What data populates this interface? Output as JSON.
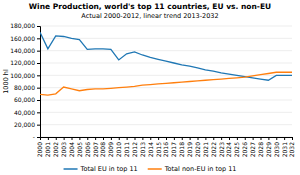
{
  "chart_data": {
    "type": "line",
    "title": "Wine Production, world's top 11 countries, EU vs. non-EU",
    "subtitle": "Actual 2000-2012, linear trend 2013-2032",
    "y_label": "1000 hl",
    "x": [
      2000,
      2001,
      2002,
      2003,
      2004,
      2005,
      2006,
      2007,
      2008,
      2009,
      2010,
      2011,
      2012,
      2013,
      2014,
      2015,
      2016,
      2017,
      2018,
      2019,
      2020,
      2021,
      2022,
      2023,
      2024,
      2025,
      2026,
      2027,
      2028,
      2029,
      2030,
      2031,
      2032
    ],
    "series": [
      {
        "name": "Total EU in top 11",
        "values": [
          170000,
          143000,
          164000,
          163000,
          160000,
          158000,
          142000,
          143000,
          143000,
          142000,
          125000,
          135000,
          138000,
          133000,
          129000,
          126000,
          123000,
          120000,
          117000,
          115000,
          112000,
          109000,
          107000,
          104000,
          102000,
          100000,
          98000,
          96000,
          94000,
          92000,
          100000,
          100000,
          100000
        ]
      },
      {
        "name": "Total non-EU in top 11",
        "values": [
          69000,
          68000,
          70000,
          81000,
          78000,
          75000,
          77000,
          78000,
          78000,
          79000,
          80000,
          81000,
          82000,
          84000,
          85000,
          86000,
          87000,
          88000,
          89000,
          90000,
          91000,
          92000,
          93000,
          94000,
          95000,
          96000,
          97000,
          99000,
          101000,
          103000,
          105000,
          105000,
          105000
        ]
      }
    ],
    "xlim": [
      2000,
      2032
    ],
    "xticks": [
      2000,
      2001,
      2002,
      2003,
      2004,
      2005,
      2006,
      2007,
      2008,
      2009,
      2010,
      2011,
      2012,
      2013,
      2014,
      2015,
      2016,
      2017,
      2018,
      2019,
      2020,
      2021,
      2022,
      2023,
      2024,
      2025,
      2026,
      2027,
      2028,
      2029,
      2030,
      2031,
      2032
    ],
    "ylim": [
      0,
      180000
    ],
    "yticks": [
      {
        "value": 0,
        "label": "-"
      },
      {
        "value": 20000,
        "label": "20,000"
      },
      {
        "value": 40000,
        "label": "40,000"
      },
      {
        "value": 60000,
        "label": "60,000"
      },
      {
        "value": 80000,
        "label": "80,000"
      },
      {
        "value": 100000,
        "label": "100,000"
      },
      {
        "value": 120000,
        "label": "120,000"
      },
      {
        "value": 140000,
        "label": "140,000"
      },
      {
        "value": 160000,
        "label": "160,000"
      },
      {
        "value": 180000,
        "label": "180,000"
      }
    ],
    "grid": true,
    "legend": "bottom"
  }
}
